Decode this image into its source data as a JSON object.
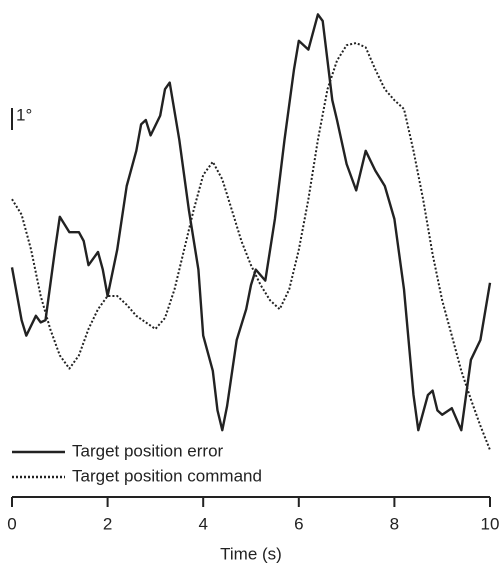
{
  "chart_data": {
    "type": "line",
    "x_label": "Time (s)",
    "xlim": [
      0,
      10
    ],
    "xticks": [
      0,
      2,
      4,
      6,
      8,
      10
    ],
    "ylim": [
      0,
      20
    ],
    "scale_bar": {
      "value": 1,
      "label": "1°"
    },
    "series": [
      {
        "name": "Target position error",
        "color": "#222222",
        "dash": "solid",
        "x": [
          0,
          0.2,
          0.3,
          0.5,
          0.6,
          0.7,
          0.9,
          1.0,
          1.2,
          1.4,
          1.5,
          1.6,
          1.8,
          1.9,
          2.0,
          2.2,
          2.4,
          2.6,
          2.7,
          2.8,
          2.9,
          3.1,
          3.2,
          3.3,
          3.5,
          3.7,
          3.9,
          4.0,
          4.2,
          4.3,
          4.4,
          4.5,
          4.7,
          4.9,
          5.0,
          5.1,
          5.3,
          5.5,
          5.7,
          5.9,
          6.0,
          6.2,
          6.4,
          6.5,
          6.7,
          6.8,
          7.0,
          7.2,
          7.4,
          7.6,
          7.8,
          8.0,
          8.2,
          8.4,
          8.5,
          8.7,
          8.8,
          8.9,
          9.0,
          9.2,
          9.4,
          9.6,
          9.8,
          10
        ],
        "values": [
          8.3,
          5.9,
          5.2,
          6.1,
          5.8,
          5.9,
          9.1,
          10.6,
          9.9,
          9.9,
          9.5,
          8.4,
          9.0,
          8.2,
          7.0,
          9.1,
          12.0,
          13.6,
          14.8,
          15.0,
          14.3,
          15.2,
          16.4,
          16.7,
          14.1,
          10.9,
          8.2,
          5.2,
          3.6,
          1.8,
          0.9,
          2.0,
          5.0,
          6.4,
          7.5,
          8.2,
          7.7,
          10.5,
          14.1,
          17.3,
          18.6,
          18.2,
          19.8,
          19.5,
          15.9,
          15.0,
          13.0,
          11.8,
          13.6,
          12.7,
          12.0,
          10.5,
          7.3,
          2.5,
          0.9,
          2.5,
          2.7,
          1.8,
          1.6,
          1.9,
          0.9,
          4.1,
          5.0,
          7.6
        ]
      },
      {
        "name": "Target position command",
        "color": "#222222",
        "dash": "dotted",
        "x": [
          0,
          0.2,
          0.4,
          0.6,
          0.8,
          1.0,
          1.2,
          1.4,
          1.6,
          1.8,
          2.0,
          2.2,
          2.4,
          2.6,
          2.8,
          3.0,
          3.2,
          3.4,
          3.6,
          3.8,
          4.0,
          4.2,
          4.4,
          4.6,
          4.8,
          5.0,
          5.2,
          5.4,
          5.6,
          5.8,
          6.0,
          6.2,
          6.4,
          6.6,
          6.8,
          7.0,
          7.2,
          7.4,
          7.6,
          7.8,
          8.0,
          8.2,
          8.4,
          8.6,
          8.8,
          9.0,
          9.2,
          9.4,
          9.6,
          9.8,
          10
        ],
        "values": [
          11.4,
          10.7,
          9.1,
          7.0,
          5.5,
          4.3,
          3.7,
          4.3,
          5.5,
          6.4,
          7.0,
          7.0,
          6.6,
          6.1,
          5.8,
          5.5,
          6.0,
          7.3,
          9.1,
          10.9,
          12.5,
          13.1,
          12.3,
          10.9,
          9.5,
          8.4,
          7.5,
          6.8,
          6.4,
          7.3,
          9.1,
          11.4,
          14.1,
          16.4,
          17.7,
          18.4,
          18.5,
          18.3,
          17.3,
          16.4,
          15.9,
          15.5,
          13.6,
          11.4,
          8.9,
          6.8,
          5.2,
          3.6,
          2.3,
          1.1,
          0.0
        ]
      }
    ]
  }
}
